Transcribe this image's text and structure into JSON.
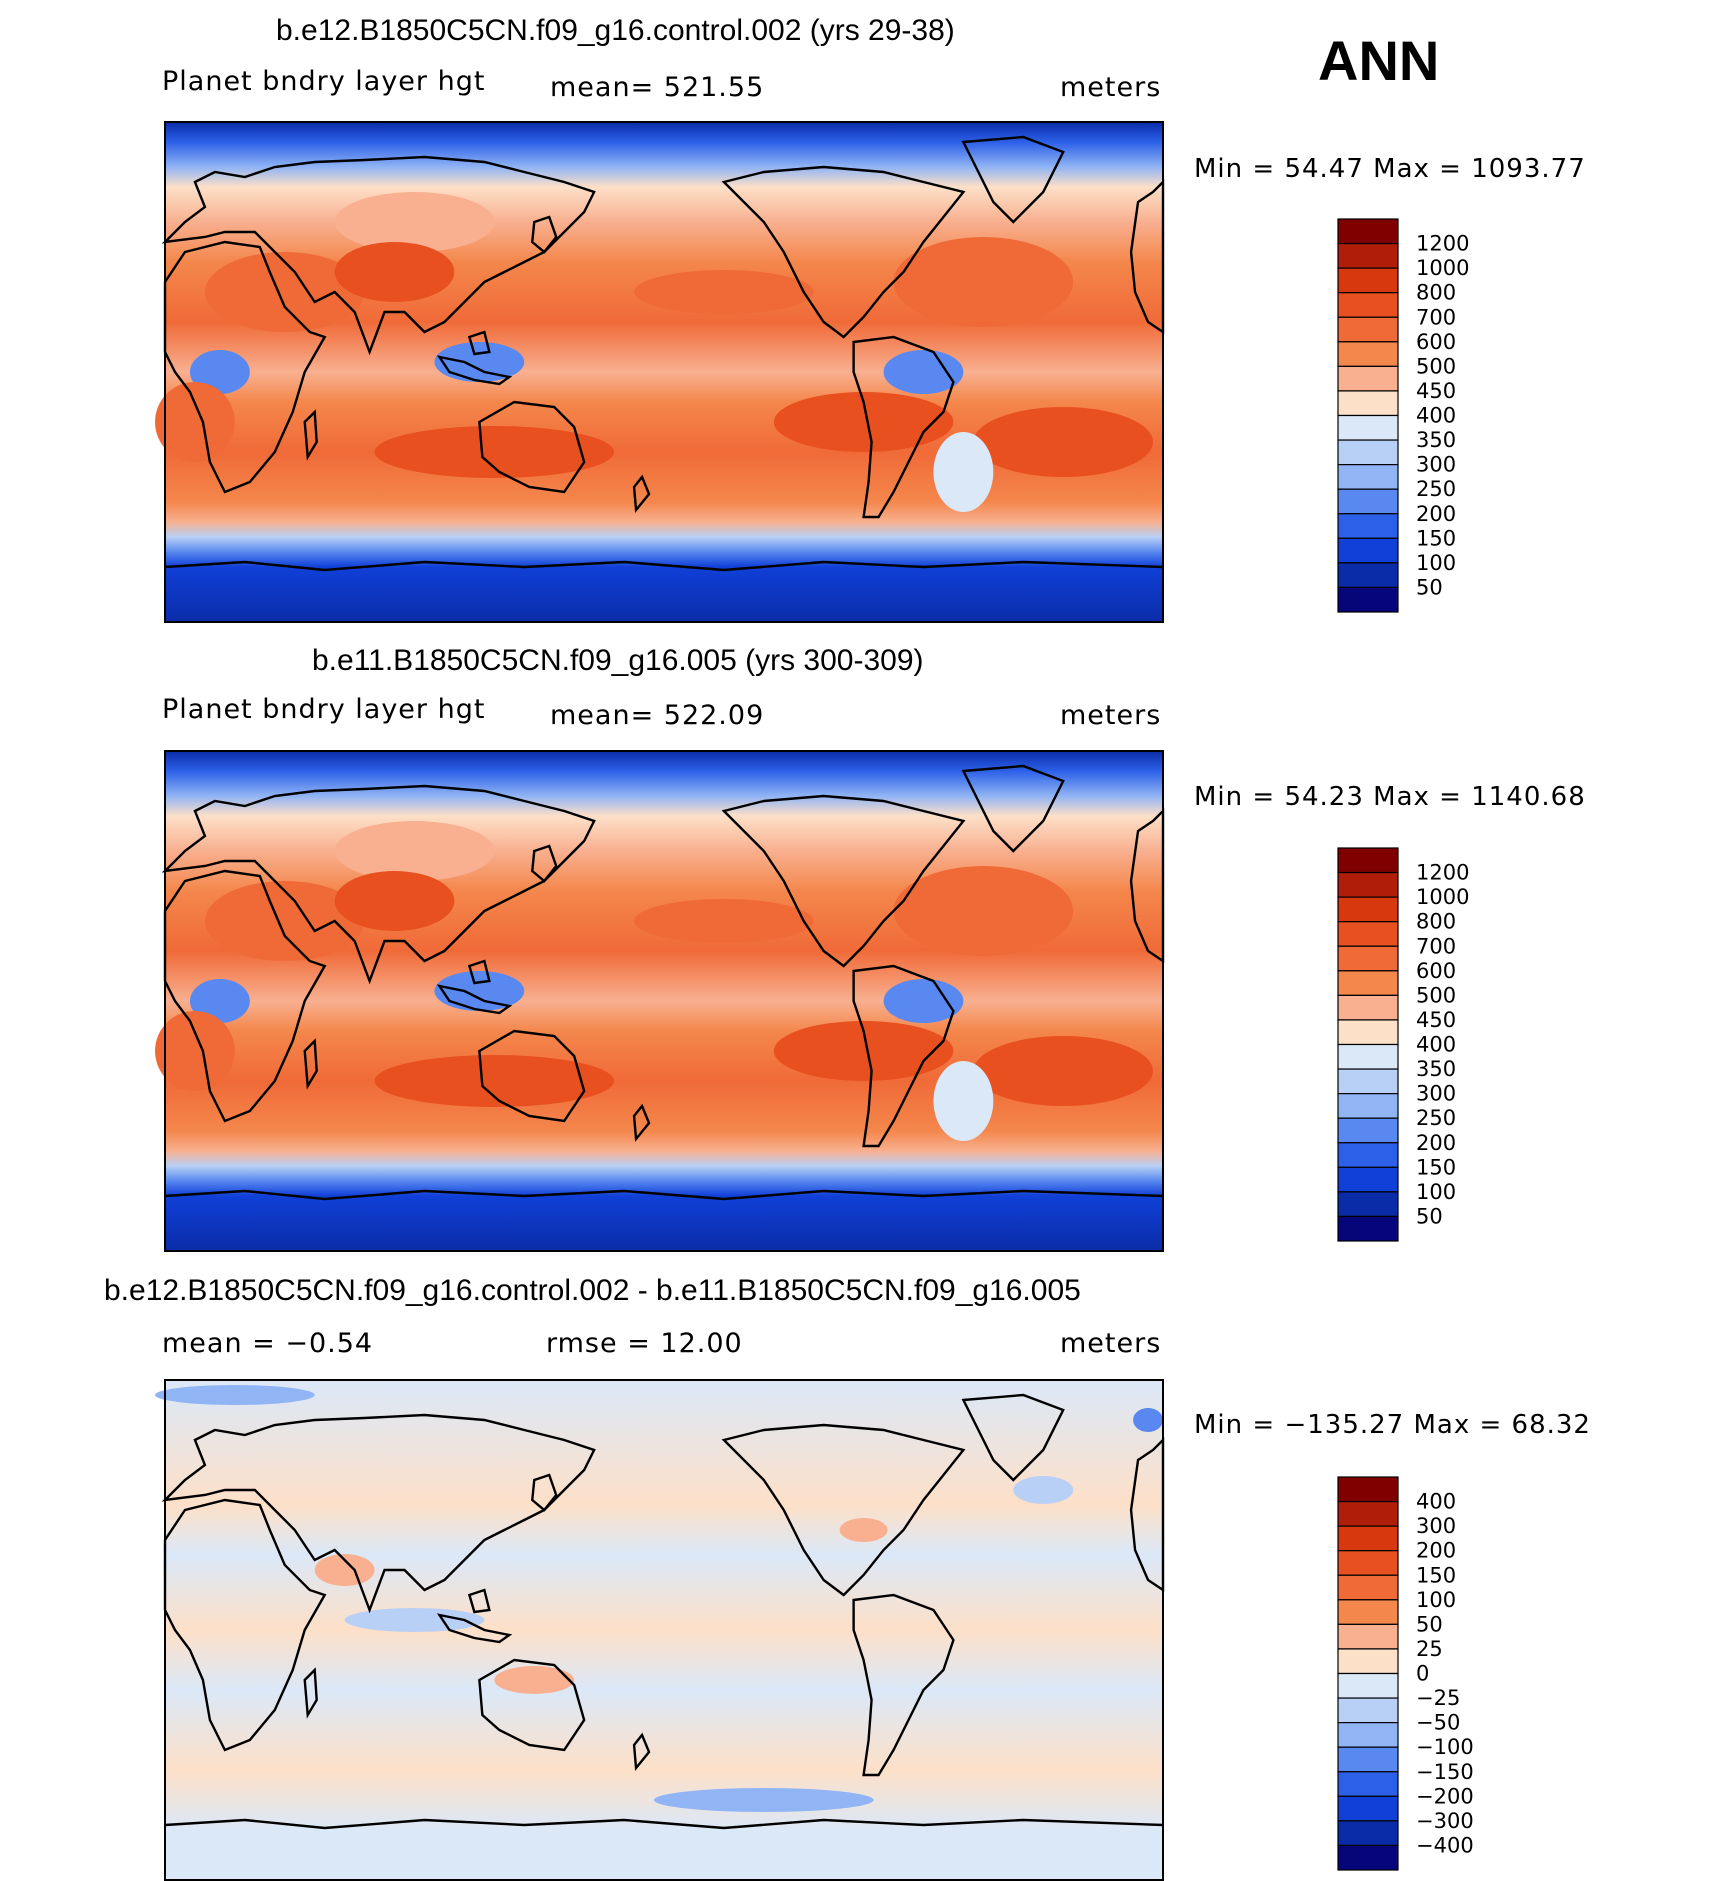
{
  "season": "ANN",
  "panels": [
    {
      "title": "b.e12.B1850C5CN.f09_g16.control.002 (yrs 29-38)",
      "left_label": "Planet bndry layer hgt",
      "center_label": "mean=  521.55",
      "units": "meters",
      "minmax": "Min =   54.47  Max  =  1093.77",
      "colorbar_ticks": [
        "1200",
        "1000",
        "800",
        "700",
        "600",
        "500",
        "450",
        "400",
        "350",
        "300",
        "250",
        "200",
        "150",
        "100",
        "50"
      ]
    },
    {
      "title": "b.e11.B1850C5CN.f09_g16.005 (yrs 300-309)",
      "left_label": "Planet bndry layer hgt",
      "center_label": "mean=  522.09",
      "units": "meters",
      "minmax": "Min =   54.23  Max  =  1140.68",
      "colorbar_ticks": [
        "1200",
        "1000",
        "800",
        "700",
        "600",
        "500",
        "450",
        "400",
        "350",
        "300",
        "250",
        "200",
        "150",
        "100",
        "50"
      ]
    },
    {
      "title": "b.e12.B1850C5CN.f09_g16.control.002 - b.e11.B1850C5CN.f09_g16.005",
      "left_label": "mean =   −0.54",
      "center_label": "rmse =   12.00",
      "units": "meters",
      "minmax": "Min = −135.27  Max  =   68.32",
      "colorbar_ticks": [
        "400",
        "300",
        "200",
        "150",
        "100",
        "50",
        "25",
        "0",
        "−25",
        "−50",
        "−100",
        "−150",
        "−200",
        "−300",
        "−400"
      ]
    }
  ],
  "colors": {
    "scale": [
      "#800000",
      "#b01e0a",
      "#d8380e",
      "#e85020",
      "#f06a38",
      "#f4874c",
      "#f8b090",
      "#fde0c8",
      "#dbe8f8",
      "#b8d0f6",
      "#90b4f4",
      "#5888f0",
      "#2c60e8",
      "#1040d8",
      "#0a2ca8",
      "#06067a"
    ],
    "land_outline": "#000000"
  }
}
